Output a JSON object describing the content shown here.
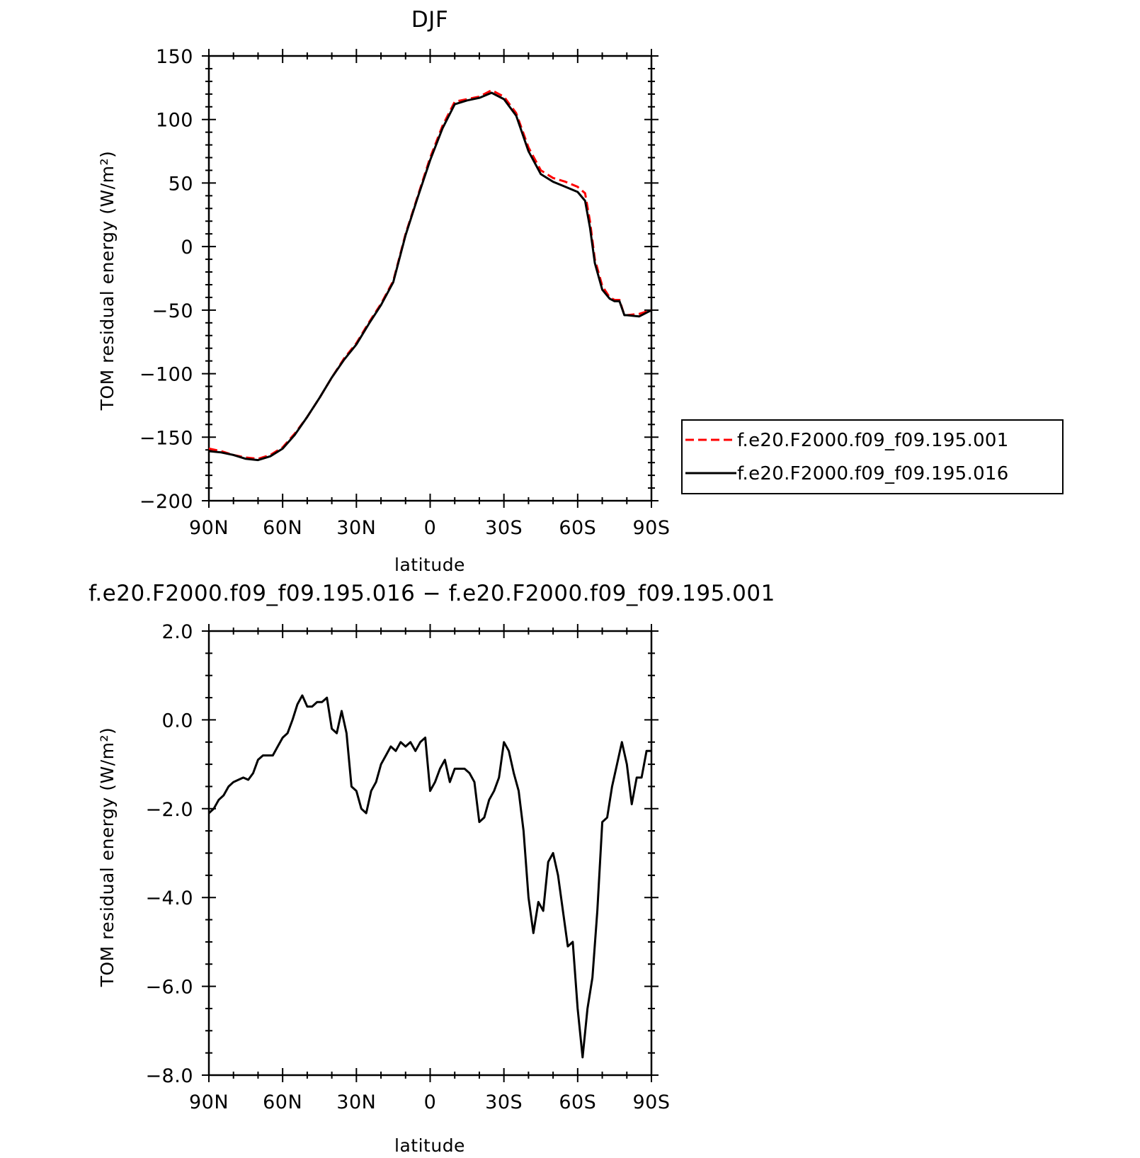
{
  "chart_data": [
    {
      "type": "line",
      "title": "DJF",
      "xlabel": "latitude",
      "ylabel": "TOM residual energy (W/m²)",
      "xlim": [
        90,
        -90
      ],
      "ylim": [
        -200,
        150
      ],
      "x_ticks": [
        90,
        60,
        30,
        0,
        -30,
        -60,
        -90
      ],
      "x_tick_labels": [
        "90N",
        "60N",
        "30N",
        "0",
        "30S",
        "60S",
        "90S"
      ],
      "y_ticks": [
        150,
        100,
        50,
        0,
        -50,
        -100,
        -150,
        -200
      ],
      "y_tick_labels": [
        "150",
        "100",
        "50",
        "0",
        "−50",
        "−100",
        "−150",
        "−200"
      ],
      "legend_position": "right, outside plot",
      "series": [
        {
          "name": "f.e20.F2000.f09_f09.195.001",
          "color": "#ff0000",
          "dash": "dashed",
          "x": [
            90,
            85,
            80,
            75,
            70,
            65,
            60,
            55,
            50,
            45,
            40,
            35,
            30,
            25,
            20,
            15,
            10,
            5,
            0,
            -5,
            -10,
            -15,
            -20,
            -25,
            -30,
            -35,
            -40,
            -45,
            -50,
            -55,
            -60,
            -63,
            -65,
            -67,
            -70,
            -73,
            -75,
            -77,
            -79,
            -80,
            -85,
            -90
          ],
          "y": [
            -159,
            -161,
            -164,
            -166,
            -167,
            -164,
            -158,
            -147,
            -134,
            -119,
            -103,
            -88,
            -76,
            -60,
            -45,
            -27,
            10,
            40,
            70,
            95,
            114,
            116,
            118,
            123,
            118,
            105,
            78,
            60,
            54,
            51,
            47,
            42,
            20,
            -10,
            -31,
            -40,
            -42,
            -42,
            -54,
            -54,
            -53,
            -50
          ]
        },
        {
          "name": "f.e20.F2000.f09_f09.195.016",
          "color": "#000000",
          "dash": "solid",
          "x": [
            90,
            85,
            80,
            75,
            70,
            65,
            60,
            55,
            50,
            45,
            40,
            35,
            30,
            25,
            20,
            15,
            10,
            5,
            0,
            -5,
            -10,
            -15,
            -20,
            -25,
            -30,
            -35,
            -40,
            -45,
            -50,
            -55,
            -60,
            -63,
            -65,
            -67,
            -70,
            -73,
            -75,
            -77,
            -79,
            -80,
            -85,
            -90
          ],
          "y": [
            -161,
            -162,
            -164,
            -167,
            -168,
            -165,
            -159,
            -148,
            -134,
            -119,
            -103,
            -89,
            -77,
            -61,
            -46,
            -28,
            9,
            39,
            68,
            93,
            112,
            115,
            117,
            121,
            116,
            103,
            75,
            57,
            51,
            47,
            43,
            36,
            15,
            -13,
            -34,
            -41,
            -43,
            -43,
            -54,
            -54,
            -55,
            -50
          ]
        }
      ]
    },
    {
      "type": "line",
      "title": "f.e20.F2000.f09_f09.195.016 − f.e20.F2000.f09_f09.195.001",
      "xlabel": "latitude",
      "ylabel": "TOM residual energy (W/m²)",
      "xlim": [
        90,
        -90
      ],
      "ylim": [
        -8.0,
        2.0
      ],
      "x_ticks": [
        90,
        60,
        30,
        0,
        -30,
        -60,
        -90
      ],
      "x_tick_labels": [
        "90N",
        "60N",
        "30N",
        "0",
        "30S",
        "60S",
        "90S"
      ],
      "y_ticks": [
        2.0,
        0.0,
        -2.0,
        -4.0,
        -6.0,
        -8.0
      ],
      "y_tick_labels": [
        "2.0",
        "0.0",
        "−2.0",
        "−4.0",
        "−6.0",
        "−8.0"
      ],
      "series": [
        {
          "color": "#000000",
          "dash": "solid",
          "x": [
            90,
            88,
            86,
            84,
            82,
            80,
            78,
            76,
            74,
            72,
            70,
            68,
            66,
            64,
            62,
            60,
            58,
            56,
            54,
            52,
            50,
            48,
            46,
            44,
            42,
            40,
            38,
            36,
            34,
            32,
            30,
            28,
            26,
            24,
            22,
            20,
            18,
            16,
            14,
            12,
            10,
            8,
            6,
            4,
            2,
            0,
            -2,
            -4,
            -6,
            -8,
            -10,
            -12,
            -14,
            -16,
            -18,
            -20,
            -22,
            -24,
            -26,
            -28,
            -30,
            -32,
            -34,
            -36,
            -38,
            -40,
            -42,
            -44,
            -46,
            -48,
            -50,
            -52,
            -54,
            -56,
            -58,
            -60,
            -62,
            -64,
            -66,
            -68,
            -70,
            -72,
            -74,
            -76,
            -78,
            -80,
            -82,
            -84,
            -86,
            -88,
            -90
          ],
          "y": [
            -2.1,
            -2.0,
            -1.8,
            -1.7,
            -1.5,
            -1.4,
            -1.35,
            -1.3,
            -1.35,
            -1.2,
            -0.9,
            -0.8,
            -0.8,
            -0.8,
            -0.6,
            -0.4,
            -0.3,
            0.0,
            0.35,
            0.55,
            0.3,
            0.3,
            0.4,
            0.4,
            0.5,
            -0.2,
            -0.3,
            0.2,
            -0.3,
            -1.5,
            -1.6,
            -2.0,
            -2.1,
            -1.6,
            -1.4,
            -1.0,
            -0.8,
            -0.6,
            -0.7,
            -0.5,
            -0.6,
            -0.5,
            -0.7,
            -0.5,
            -0.4,
            -1.6,
            -1.4,
            -1.1,
            -0.9,
            -1.4,
            -1.1,
            -1.1,
            -1.1,
            -1.2,
            -1.4,
            -2.3,
            -2.2,
            -1.8,
            -1.6,
            -1.3,
            -0.5,
            -0.7,
            -1.2,
            -1.6,
            -2.5,
            -4.0,
            -4.8,
            -4.1,
            -4.3,
            -3.2,
            -3.0,
            -3.5,
            -4.3,
            -5.1,
            -5.0,
            -6.5,
            -7.6,
            -6.5,
            -5.8,
            -4.3,
            -2.3,
            -2.2,
            -1.5,
            -1.0,
            -0.5,
            -1.0,
            -1.9,
            -1.3,
            -1.3,
            -0.7,
            -0.7
          ]
        }
      ]
    }
  ]
}
